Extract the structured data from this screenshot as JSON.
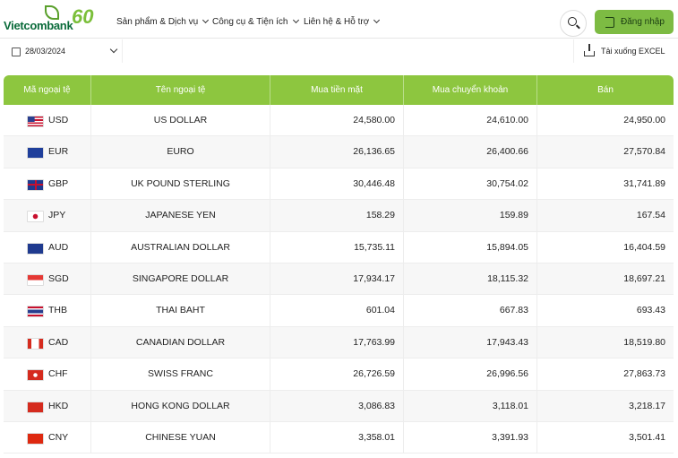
{
  "header": {
    "brand": "Vietcombank",
    "badge": "60",
    "nav": [
      "Sản phẩm & Dịch vụ",
      "Công cụ & Tiện ích",
      "Liên hệ & Hỗ trợ"
    ],
    "login": "Đăng nhập"
  },
  "toolbar": {
    "date": "28/03/2024",
    "download": "Tải xuống EXCEL"
  },
  "table": {
    "columns": [
      "Mã ngoại tệ",
      "Tên ngoại tệ",
      "Mua tiền mặt",
      "Mua chuyển khoản",
      "Bán"
    ],
    "rows": [
      [
        "USD",
        "US DOLLAR",
        "24,580.00",
        "24,610.00",
        "24,950.00"
      ],
      [
        "EUR",
        "EURO",
        "26,136.65",
        "26,400.66",
        "27,570.84"
      ],
      [
        "GBP",
        "UK POUND STERLING",
        "30,446.48",
        "30,754.02",
        "31,741.89"
      ],
      [
        "JPY",
        "JAPANESE YEN",
        "158.29",
        "159.89",
        "167.54"
      ],
      [
        "AUD",
        "AUSTRALIAN DOLLAR",
        "15,735.11",
        "15,894.05",
        "16,404.59"
      ],
      [
        "SGD",
        "SINGAPORE DOLLAR",
        "17,934.17",
        "18,115.32",
        "18,697.21"
      ],
      [
        "THB",
        "THAI BAHT",
        "601.04",
        "667.83",
        "693.43"
      ],
      [
        "CAD",
        "CANADIAN DOLLAR",
        "17,763.99",
        "17,943.43",
        "18,519.80"
      ],
      [
        "CHF",
        "SWISS FRANC",
        "26,726.59",
        "26,996.56",
        "27,863.73"
      ],
      [
        "HKD",
        "HONG KONG DOLLAR",
        "3,086.83",
        "3,118.01",
        "3,218.17"
      ],
      [
        "CNY",
        "CHINESE YUAN",
        "3,358.01",
        "3,391.93",
        "3,501.41"
      ]
    ]
  }
}
